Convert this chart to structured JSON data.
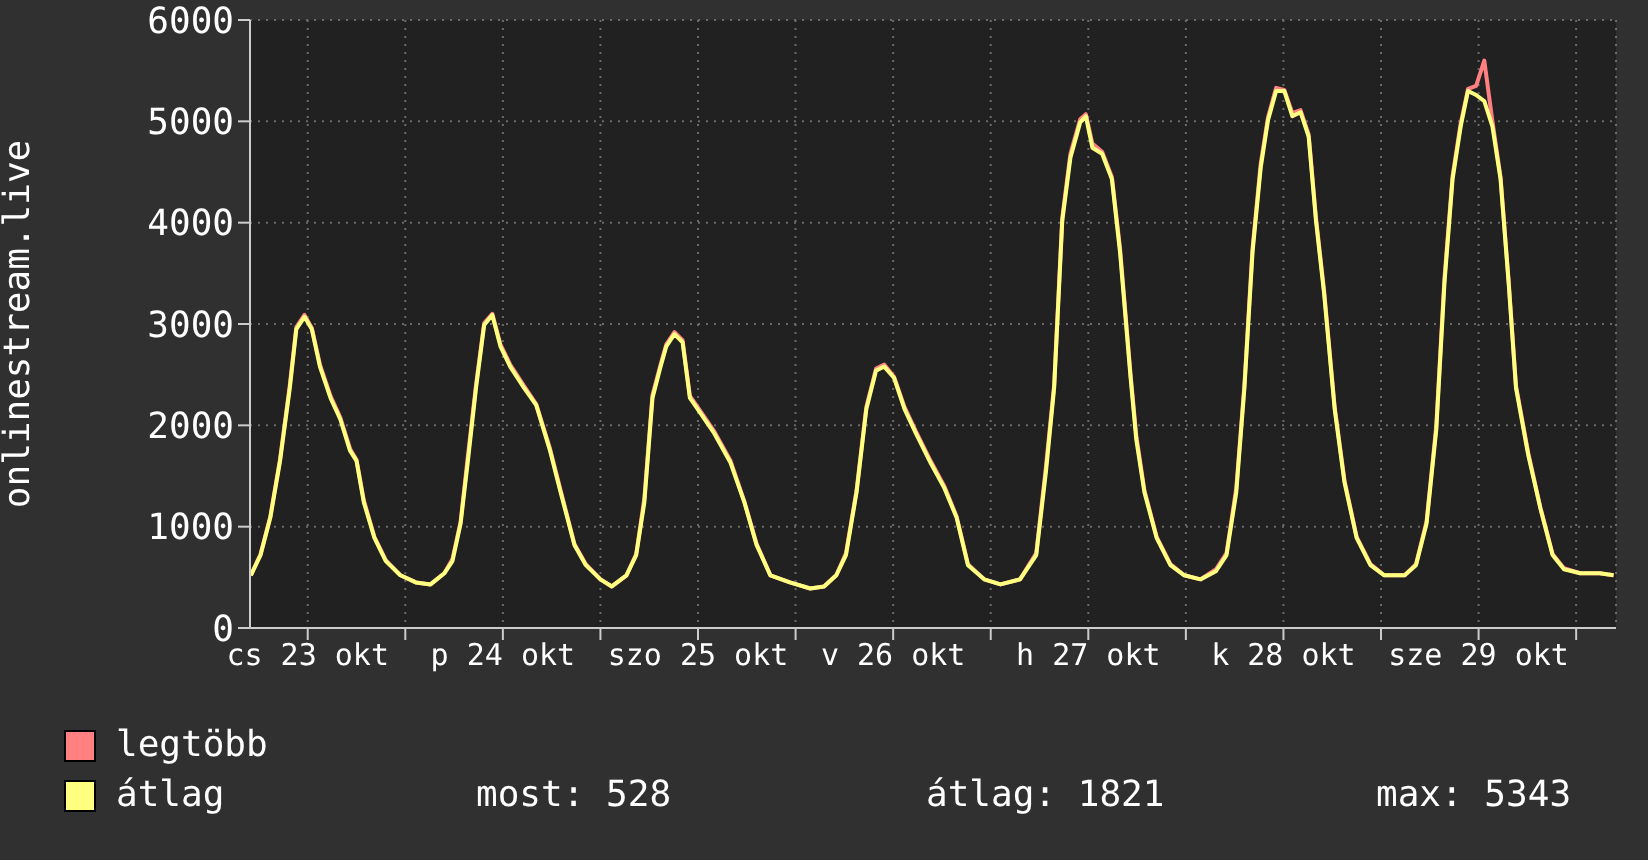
{
  "chart_data": {
    "type": "line",
    "ylabel": "onlinestream.live",
    "x": [
      "--10-23T05:00",
      "--10-23T06:12",
      "--10-23T07:24",
      "--10-23T08:36",
      "--10-23T09:48",
      "--10-23T10:36",
      "--10-23T11:36",
      "--10-23T12:30",
      "--10-23T13:30",
      "--10-23T14:48",
      "--10-23T16:00",
      "--10-23T17:12",
      "--10-23T18:00",
      "--10-23T18:54",
      "--10-23T20:12",
      "--10-23T21:36",
      "--10-23T23:24",
      "--10-24T01:18",
      "--10-24T03:06",
      "--10-24T04:48",
      "--10-24T05:48",
      "--10-24T06:48",
      "--10-24T07:42",
      "--10-24T08:42",
      "--10-24T09:42",
      "--10-24T10:42",
      "--10-24T11:42",
      "--10-24T12:54",
      "--10-24T14:36",
      "--10-24T16:06",
      "--10-24T17:48",
      "--10-24T19:06",
      "--10-24T20:48",
      "--10-24T22:12",
      "--10-25T00:00",
      "--10-25T01:24",
      "--10-25T03:12",
      "--10-25T04:24",
      "--10-25T05:24",
      "--10-25T06:24",
      "--10-25T07:24",
      "--10-25T08:06",
      "--10-25T09:06",
      "--10-25T10:06",
      "--10-25T11:00",
      "--10-25T12:18",
      "--10-25T14:00",
      "--10-25T16:00",
      "--10-25T17:42",
      "--10-25T19:12",
      "--10-25T20:54",
      "--10-25T23:18",
      "--10-26T01:48",
      "--10-26T03:30",
      "--10-26T05:00",
      "--10-26T06:12",
      "--10-26T07:30",
      "--10-26T08:42",
      "--10-26T09:54",
      "--10-26T10:54",
      "--10-26T12:06",
      "--10-26T13:24",
      "--10-26T14:48",
      "--10-26T16:36",
      "--10-26T18:18",
      "--10-26T19:48",
      "--10-26T21:12",
      "--10-26T23:12",
      "--10-27T01:12",
      "--10-27T03:36",
      "--10-27T05:36",
      "--10-27T06:48",
      "--10-27T07:48",
      "--10-27T08:48",
      "--10-27T09:48",
      "--10-27T11:00",
      "--10-27T11:42",
      "--10-27T12:30",
      "--10-27T13:42",
      "--10-27T14:54",
      "--10-27T15:54",
      "--10-27T17:12",
      "--10-27T17:54",
      "--10-27T18:54",
      "--10-27T20:24",
      "--10-27T22:06",
      "--10-27T23:48",
      "--10-28T01:48",
      "--10-28T03:42",
      "--10-28T05:00",
      "--10-28T06:12",
      "--10-28T07:12",
      "--10-28T08:12",
      "--10-28T09:12",
      "--10-28T10:06",
      "--10-28T11:06",
      "--10-28T12:06",
      "--10-28T13:06",
      "--10-28T14:06",
      "--10-28T15:06",
      "--10-28T16:00",
      "--10-28T17:00",
      "--10-28T18:18",
      "--10-28T19:30",
      "--10-28T21:00",
      "--10-28T22:42",
      "--10-29T00:24",
      "--10-29T02:54",
      "--10-29T04:18",
      "--10-29T05:36",
      "--10-29T06:48",
      "--10-29T07:48",
      "--10-29T08:48",
      "--10-29T09:48",
      "--10-29T10:42",
      "--10-29T11:42",
      "--10-29T12:42",
      "--10-29T13:42",
      "--10-29T14:42",
      "--10-29T15:42",
      "--10-29T16:36",
      "--10-29T18:06",
      "--10-29T19:36",
      "--10-29T21:06",
      "--10-29T22:30",
      "--10-30T00:30",
      "--10-30T02:54",
      "--10-30T04:36"
    ],
    "series": [
      {
        "name": "legtöbb",
        "color": "#ff8080",
        "values": [
          520,
          730,
          1100,
          1670,
          2400,
          2970,
          3090,
          2960,
          2600,
          2290,
          2080,
          1770,
          1660,
          1260,
          900,
          670,
          520,
          450,
          430,
          540,
          680,
          1050,
          1700,
          2400,
          3010,
          3100,
          2800,
          2600,
          2390,
          2210,
          1770,
          1360,
          830,
          630,
          480,
          410,
          520,
          730,
          1280,
          2300,
          2600,
          2800,
          2920,
          2840,
          2290,
          2140,
          1940,
          1650,
          1250,
          830,
          520,
          450,
          390,
          410,
          520,
          740,
          1360,
          2180,
          2560,
          2600,
          2480,
          2180,
          1940,
          1650,
          1400,
          1100,
          630,
          480,
          430,
          480,
          740,
          1600,
          2400,
          4050,
          4680,
          5020,
          5070,
          4780,
          4700,
          4450,
          3750,
          2500,
          1900,
          1360,
          900,
          630,
          520,
          480,
          580,
          740,
          1380,
          2400,
          3750,
          4580,
          5040,
          5330,
          5310,
          5080,
          5110,
          4870,
          4050,
          3330,
          2180,
          1460,
          900,
          630,
          520,
          520,
          630,
          1050,
          2000,
          3450,
          4460,
          4980,
          5320,
          5350,
          5600,
          5000,
          4450,
          3420,
          2390,
          1730,
          1190,
          730,
          590,
          540,
          540,
          520
        ]
      },
      {
        "name": "átlag",
        "color": "#ffff80",
        "values": [
          520,
          720,
          1090,
          1650,
          2370,
          2950,
          3070,
          2950,
          2580,
          2270,
          2060,
          1750,
          1650,
          1240,
          890,
          660,
          520,
          450,
          430,
          540,
          660,
          1030,
          1650,
          2370,
          2990,
          3090,
          2780,
          2580,
          2370,
          2200,
          1750,
          1340,
          820,
          620,
          480,
          410,
          520,
          720,
          1240,
          2270,
          2580,
          2780,
          2900,
          2820,
          2270,
          2120,
          1920,
          1630,
          1240,
          820,
          520,
          450,
          390,
          410,
          520,
          720,
          1340,
          2160,
          2540,
          2580,
          2470,
          2160,
          1920,
          1630,
          1380,
          1090,
          620,
          480,
          430,
          480,
          720,
          1550,
          2370,
          4020,
          4640,
          4990,
          5050,
          4740,
          4680,
          4430,
          3710,
          2470,
          1860,
          1340,
          890,
          620,
          520,
          480,
          560,
          720,
          1340,
          2370,
          3710,
          4540,
          5010,
          5300,
          5300,
          5050,
          5090,
          4850,
          4020,
          3300,
          2160,
          1440,
          890,
          620,
          520,
          520,
          620,
          1030,
          1960,
          3400,
          4430,
          4950,
          5300,
          5260,
          5200,
          4950,
          4430,
          3400,
          2370,
          1710,
          1180,
          720,
          580,
          540,
          540,
          520
        ]
      }
    ],
    "xlim": [
      "--10-23T04:54",
      "--10-30T04:54"
    ],
    "xticks": [
      {
        "value": "--10-23T12:00",
        "label": "cs 23 okt"
      },
      {
        "value": "--10-24",
        "label": null
      },
      {
        "value": "--10-24T12:00",
        "label": "p 24 okt"
      },
      {
        "value": "--10-25",
        "label": null
      },
      {
        "value": "--10-25T12:00",
        "label": "szo 25 okt"
      },
      {
        "value": "--10-26",
        "label": null
      },
      {
        "value": "--10-26T12:00",
        "label": "v 26 okt"
      },
      {
        "value": "--10-27",
        "label": null
      },
      {
        "value": "--10-27T12:00",
        "label": "h 27 okt"
      },
      {
        "value": "--10-28",
        "label": null
      },
      {
        "value": "--10-28T12:00",
        "label": "k 28 okt"
      },
      {
        "value": "--10-29",
        "label": null
      },
      {
        "value": "--10-29T12:00",
        "label": "sze 29 okt"
      },
      {
        "value": "--10-30",
        "label": null
      }
    ],
    "ylim": [
      0,
      6000
    ],
    "yticks": [
      0,
      1000,
      2000,
      3000,
      4000,
      5000,
      6000
    ],
    "grid": true,
    "legend": "bottom left",
    "marker": "none",
    "line_style": "solid",
    "annotations": [
      "most: 528",
      "átlag: 1821",
      "max: 5343"
    ]
  }
}
